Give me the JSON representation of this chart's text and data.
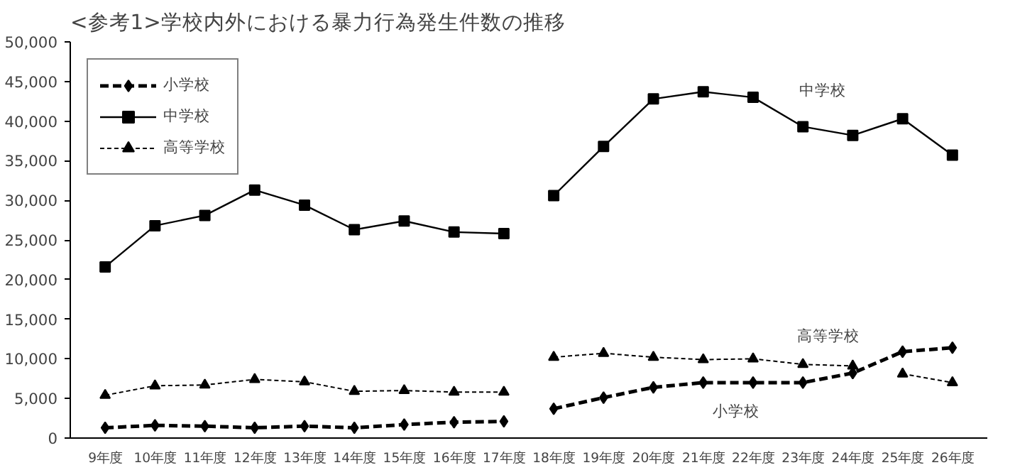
{
  "chart_data": {
    "type": "line",
    "title": "<参考1>学校内外における暴力行為発生件数の推移",
    "categories": [
      "9年度",
      "10年度",
      "11年度",
      "12年度",
      "13年度",
      "14年度",
      "15年度",
      "16年度",
      "17年度",
      "18年度",
      "19年度",
      "20年度",
      "21年度",
      "22年度",
      "23年度",
      "24年度",
      "25年度",
      "26年度"
    ],
    "ylim": [
      0,
      50000
    ],
    "yticks": [
      {
        "value": 0,
        "label": "0"
      },
      {
        "value": 5000,
        "label": "5,000"
      },
      {
        "value": 10000,
        "label": "10,000"
      },
      {
        "value": 15000,
        "label": "15,000"
      },
      {
        "value": 20000,
        "label": "20,000"
      },
      {
        "value": 25000,
        "label": "25,000"
      },
      {
        "value": 30000,
        "label": "30,000"
      },
      {
        "value": 35000,
        "label": "35,000"
      },
      {
        "value": 40000,
        "label": "40,000"
      },
      {
        "value": 45000,
        "label": "45,000"
      },
      {
        "value": 50000,
        "label": "50,000"
      }
    ],
    "grid": false,
    "legend": "top left",
    "series": [
      {
        "name": "小学校",
        "color": "#000000",
        "line_style": "dashed",
        "marker": "diamond",
        "values": [
          1300,
          1600,
          1500,
          1300,
          1500,
          1300,
          1700,
          2000,
          2100,
          null,
          null,
          null,
          null,
          null,
          null,
          null,
          null,
          null
        ]
      },
      {
        "name": "中学校",
        "color": "#000000",
        "line_style": "solid",
        "marker": "square",
        "values": [
          21600,
          26800,
          28100,
          31300,
          29400,
          26300,
          27400,
          26000,
          25800,
          null,
          null,
          null,
          null,
          null,
          null,
          null,
          null,
          null
        ]
      },
      {
        "name": "高等学校",
        "color": "#000000",
        "line_style": "dotted",
        "marker": "triangle",
        "values": [
          5400,
          6600,
          6700,
          7400,
          7100,
          5900,
          6000,
          5800,
          5800,
          null,
          null,
          null,
          null,
          null,
          null,
          null,
          null,
          null
        ]
      },
      {
        "color": "#000000",
        "line_style": "dashed",
        "marker": "diamond",
        "values": [
          null,
          null,
          null,
          null,
          null,
          null,
          null,
          null,
          null,
          3700,
          5100,
          6400,
          7000,
          7000,
          7000,
          8200,
          10900,
          11400
        ]
      },
      {
        "color": "#000000",
        "line_style": "solid",
        "marker": "square",
        "values": [
          null,
          null,
          null,
          null,
          null,
          null,
          null,
          null,
          null,
          30600,
          36800,
          42800,
          43700,
          43000,
          39300,
          38200,
          40300,
          35700
        ]
      },
      {
        "color": "#000000",
        "line_style": "dotted",
        "marker": "triangle",
        "values": [
          null,
          null,
          null,
          null,
          null,
          null,
          null,
          null,
          null,
          10200,
          10700,
          10200,
          9900,
          10000,
          9300,
          9100,
          null,
          null
        ]
      },
      {
        "color": "#000000",
        "line_style": "dotted",
        "marker": "triangle",
        "values": [
          null,
          null,
          null,
          null,
          null,
          null,
          null,
          null,
          null,
          null,
          null,
          null,
          null,
          null,
          null,
          null,
          8100,
          7000
        ]
      }
    ],
    "annotations": [
      "中学校",
      "高等学校",
      "小学校"
    ]
  }
}
